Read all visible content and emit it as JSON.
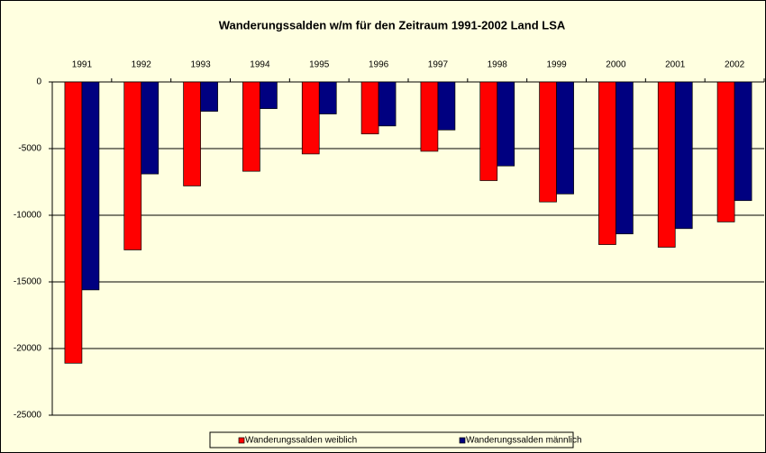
{
  "chart_data": {
    "type": "bar",
    "title": "Wanderungssalden w/m für den Zeitraum 1991-2002 Land LSA",
    "categories": [
      "1991",
      "1992",
      "1993",
      "1994",
      "1995",
      "1996",
      "1997",
      "1998",
      "1999",
      "2000",
      "2001",
      "2002"
    ],
    "series": [
      {
        "name": "Wanderungssalden weiblich",
        "color": "#ff0000",
        "values": [
          -21100,
          -12600,
          -7800,
          -6700,
          -5400,
          -3900,
          -5200,
          -7400,
          -9000,
          -12200,
          -12400,
          -10500
        ]
      },
      {
        "name": "Wanderungssalden männlich",
        "color": "#000080",
        "values": [
          -15600,
          -6900,
          -2200,
          -2000,
          -2400,
          -3300,
          -3600,
          -6300,
          -8400,
          -11400,
          -11000,
          -8900
        ]
      }
    ],
    "ylim": [
      -25000,
      0
    ],
    "yticks": [
      0,
      -5000,
      -10000,
      -15000,
      -20000,
      -25000
    ],
    "grid": true,
    "legend": "bottom"
  }
}
